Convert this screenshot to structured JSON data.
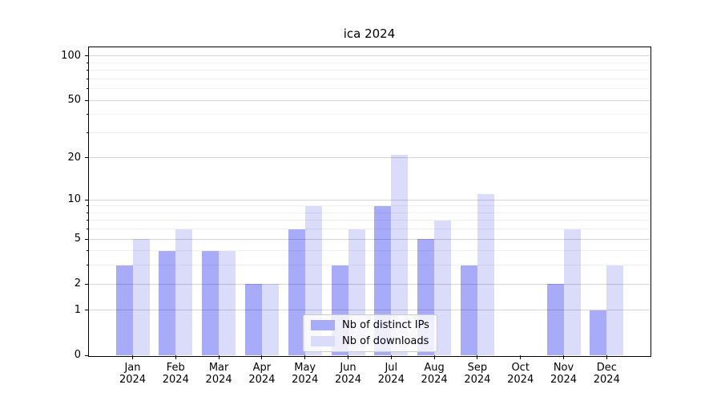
{
  "figure": {
    "title": "ica 2024"
  },
  "chart_data": {
    "type": "bar",
    "title": "ica 2024",
    "categories": [
      "Jan 2024",
      "Feb 2024",
      "Mar 2024",
      "Apr 2024",
      "May 2024",
      "Jun 2024",
      "Jul 2024",
      "Aug 2024",
      "Sep 2024",
      "Oct 2024",
      "Nov 2024",
      "Dec 2024"
    ],
    "series": [
      {
        "name": "Nb of distinct IPs",
        "color": "#a8abf8",
        "values": [
          3,
          4,
          4,
          2,
          6,
          3,
          9,
          5,
          3,
          0,
          2,
          1
        ]
      },
      {
        "name": "Nb of downloads",
        "color": "#dbdcfa",
        "values": [
          5,
          6,
          4,
          2,
          9,
          6,
          21,
          7,
          11,
          0,
          6,
          3
        ]
      }
    ],
    "xlabel": "",
    "ylabel": "",
    "yscale": "log1p",
    "ylim": [
      0,
      117
    ],
    "y_major_ticks": [
      0,
      1,
      2,
      5,
      10,
      20,
      50,
      100
    ],
    "y_minor_ticks": [
      3,
      4,
      6,
      7,
      8,
      9,
      30,
      40,
      60,
      70,
      80,
      90
    ],
    "grid": true,
    "legend": {
      "entries": [
        "Nb of distinct IPs",
        "Nb of downloads"
      ],
      "position": "lower center"
    }
  }
}
